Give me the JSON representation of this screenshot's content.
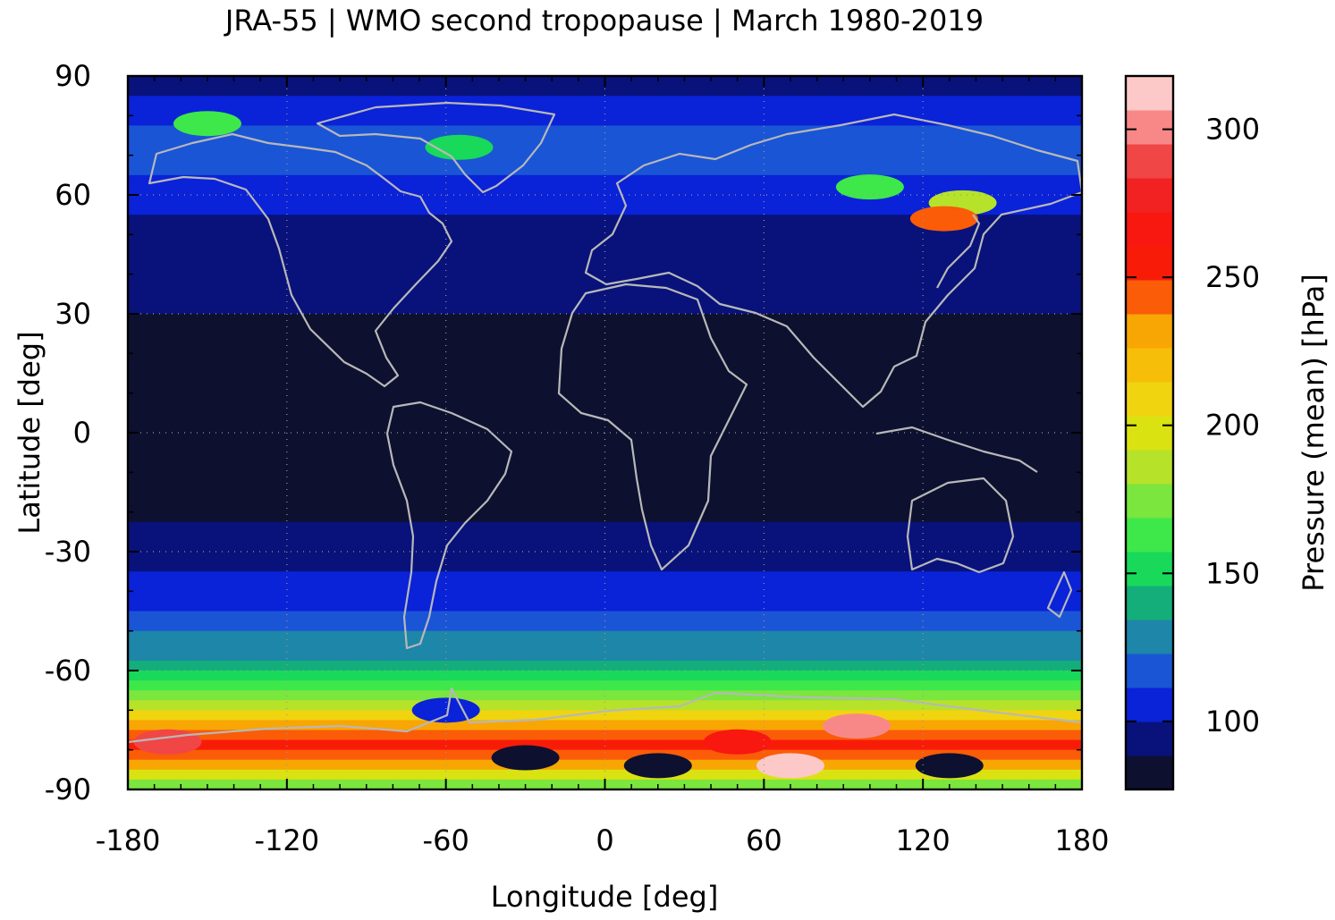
{
  "chart_data": {
    "type": "heatmap",
    "title": "JRA-55 | WMO second tropopause | March 1980-2019",
    "xlabel": "Longitude [deg]",
    "ylabel": "Latitude [deg]",
    "colorbar_label": "Pressure (mean) [hPa]",
    "xlim": [
      -180,
      180
    ],
    "ylim": [
      -90,
      90
    ],
    "xticks": [
      -180,
      -120,
      -60,
      0,
      60,
      120,
      180
    ],
    "yticks": [
      90,
      60,
      30,
      0,
      -30,
      -60,
      -90
    ],
    "colorbar_range": [
      77,
      318
    ],
    "colorbar_ticks": [
      100,
      150,
      200,
      250,
      300
    ],
    "grid": true,
    "colormap": [
      "#0e1030",
      "#08127a",
      "#0a22d8",
      "#1a55d6",
      "#1e86a8",
      "#14ae7a",
      "#18d95a",
      "#3ee84a",
      "#7ae63e",
      "#b6e22a",
      "#dae212",
      "#f0d410",
      "#f6be08",
      "#f8a604",
      "#fa5c08",
      "#f81c08",
      "#f81810",
      "#f22222",
      "#f04646",
      "#f88888",
      "#fcc8c8"
    ],
    "zonal_profile": [
      {
        "lat": 90,
        "value": 92
      },
      {
        "lat": 80,
        "value": 110
      },
      {
        "lat": 70,
        "value": 118
      },
      {
        "lat": 60,
        "value": 104
      },
      {
        "lat": 50,
        "value": 96
      },
      {
        "lat": 40,
        "value": 92
      },
      {
        "lat": 30,
        "value": 88
      },
      {
        "lat": 20,
        "value": 80
      },
      {
        "lat": 0,
        "value": 78
      },
      {
        "lat": -15,
        "value": 79
      },
      {
        "lat": -22,
        "value": 88
      },
      {
        "lat": -30,
        "value": 96
      },
      {
        "lat": -40,
        "value": 104
      },
      {
        "lat": -48,
        "value": 118
      },
      {
        "lat": -55,
        "value": 130
      },
      {
        "lat": -62,
        "value": 148
      },
      {
        "lat": -67,
        "value": 175
      },
      {
        "lat": -72,
        "value": 215
      },
      {
        "lat": -78,
        "value": 260
      },
      {
        "lat": -84,
        "value": 230
      },
      {
        "lat": -88,
        "value": 175
      }
    ],
    "anomalies": [
      {
        "lon": 135,
        "lat": 58,
        "value": 185
      },
      {
        "lon": 128,
        "lat": 54,
        "value": 240
      },
      {
        "lon": 100,
        "lat": 62,
        "value": 165
      },
      {
        "lon": -55,
        "lat": 72,
        "value": 150
      },
      {
        "lon": -150,
        "lat": 78,
        "value": 165
      },
      {
        "lon": 95,
        "lat": -74,
        "value": 300
      },
      {
        "lon": 70,
        "lat": -84,
        "value": 318
      },
      {
        "lon": 50,
        "lat": -78,
        "value": 265
      },
      {
        "lon": -165,
        "lat": -78,
        "value": 290
      },
      {
        "lon": -30,
        "lat": -82,
        "value": 77
      },
      {
        "lon": 20,
        "lat": -84,
        "value": 77
      },
      {
        "lon": 130,
        "lat": -84,
        "value": 77
      },
      {
        "lon": -60,
        "lat": -70,
        "value": 110
      }
    ]
  }
}
